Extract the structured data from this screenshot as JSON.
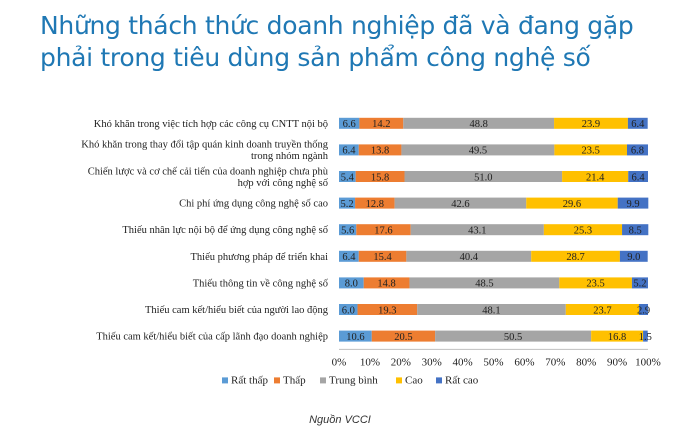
{
  "title": "Những thách thức doanh nghiệp đã và đang gặp phải trong tiêu dùng sản phẩm công nghệ số",
  "source": "Nguồn VCCI",
  "chart_data": {
    "type": "bar",
    "orientation": "horizontal",
    "stacked": "percent",
    "categories": [
      [
        "Khó khăn trong việc tích hợp các công cụ CNTT nội bộ"
      ],
      [
        "Khó khăn trong thay đổi tập quán kinh doanh truyền thống",
        "trong nhóm ngành"
      ],
      [
        "Chiến lược và cơ chế cải tiến của doanh nghiệp chưa phù",
        "hợp với công nghệ số"
      ],
      [
        "Chi phí ứng dụng công nghệ số cao"
      ],
      [
        "Thiếu nhân lực nội bộ để ứng dụng công nghệ số"
      ],
      [
        "Thiếu phương pháp để triển khai"
      ],
      [
        "Thiếu thông tin về công nghệ số"
      ],
      [
        "Thiếu cam kết/hiểu biết của người lao động"
      ],
      [
        "Thiếu cam kết/hiểu biết của cấp lãnh đạo doanh nghiệp"
      ]
    ],
    "series": [
      {
        "name": "Rất thấp",
        "color": "#5b9bd5",
        "values": [
          6.6,
          6.4,
          5.4,
          5.2,
          5.6,
          6.4,
          8.0,
          6.0,
          10.6
        ]
      },
      {
        "name": "Thấp",
        "color": "#ed7d31",
        "values": [
          14.2,
          13.8,
          15.8,
          12.8,
          17.6,
          15.4,
          14.8,
          19.3,
          20.5
        ]
      },
      {
        "name": "Trung bình",
        "color": "#a5a5a5",
        "values": [
          48.8,
          49.5,
          51.0,
          42.6,
          43.1,
          40.4,
          48.5,
          48.1,
          50.5
        ]
      },
      {
        "name": "Cao",
        "color": "#ffc000",
        "values": [
          23.9,
          23.5,
          21.4,
          29.6,
          25.3,
          28.7,
          23.5,
          23.7,
          16.8
        ]
      },
      {
        "name": "Rất cao",
        "color": "#4472c4",
        "values": [
          6.4,
          6.8,
          6.4,
          9.9,
          8.5,
          9.0,
          5.2,
          2.9,
          1.5
        ]
      }
    ],
    "x_ticks": [
      "0%",
      "10%",
      "20%",
      "30%",
      "40%",
      "50%",
      "60%",
      "70%",
      "80%",
      "90%",
      "100%"
    ],
    "xlim": [
      0,
      100
    ],
    "legend_position": "bottom",
    "grid": false
  }
}
